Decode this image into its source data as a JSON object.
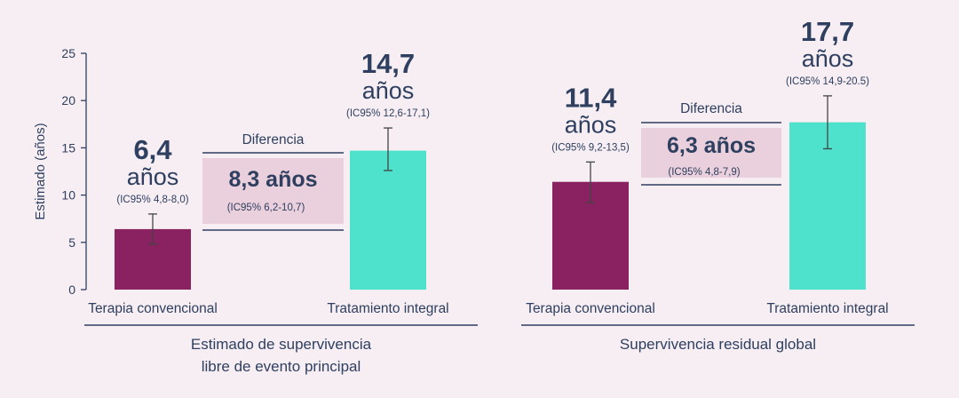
{
  "colors": {
    "background": "#f6eef3",
    "text": "#2e3f5f",
    "conventional": "#8a2161",
    "integral": "#4ee2cd",
    "difference_box": "#ead0dd",
    "axis": "#2e3f5f"
  },
  "chart_data": [
    {
      "type": "bar",
      "ylabel": "Estimado (años)",
      "ylim": [
        0,
        25
      ],
      "yticks": [
        0,
        5,
        10,
        15,
        20,
        25
      ],
      "categories": [
        "Terapia convencional",
        "Tratamiento integral"
      ],
      "values": [
        6.4,
        14.7
      ],
      "ci": [
        [
          4.8,
          8.0
        ],
        [
          12.6,
          17.1
        ]
      ],
      "value_labels": [
        "6,4",
        "14,7"
      ],
      "unit_label": "años",
      "ci_labels": [
        "(IC95% 4,8-8,0)",
        "(IC95% 12,6-17,1)"
      ],
      "difference": {
        "title": "Diferencia",
        "value": 8.3,
        "value_label": "8,3 años",
        "ci": [
          6.2,
          10.7
        ],
        "ci_label": "(IC95% 6,2-10,7)"
      },
      "group_title": [
        "Estimado de supervivencia",
        "libre de evento principal"
      ]
    },
    {
      "type": "bar",
      "ylabel": "",
      "ylim": [
        0,
        25
      ],
      "categories": [
        "Terapia convencional",
        "Tratamiento integral"
      ],
      "values": [
        11.4,
        17.7
      ],
      "ci": [
        [
          9.2,
          13.5
        ],
        [
          14.9,
          20.5
        ]
      ],
      "value_labels": [
        "11,4",
        "17,7"
      ],
      "unit_label": "años",
      "ci_labels": [
        "(IC95% 9,2-13,5)",
        "(IC95% 14,9-20.5)"
      ],
      "difference": {
        "title": "Diferencia",
        "value": 6.3,
        "value_label": "6,3 años",
        "ci": [
          4.8,
          7.9
        ],
        "ci_label": "(IC95% 4,8-7,9)"
      },
      "group_title": [
        "Supervivencia residual global"
      ]
    }
  ]
}
